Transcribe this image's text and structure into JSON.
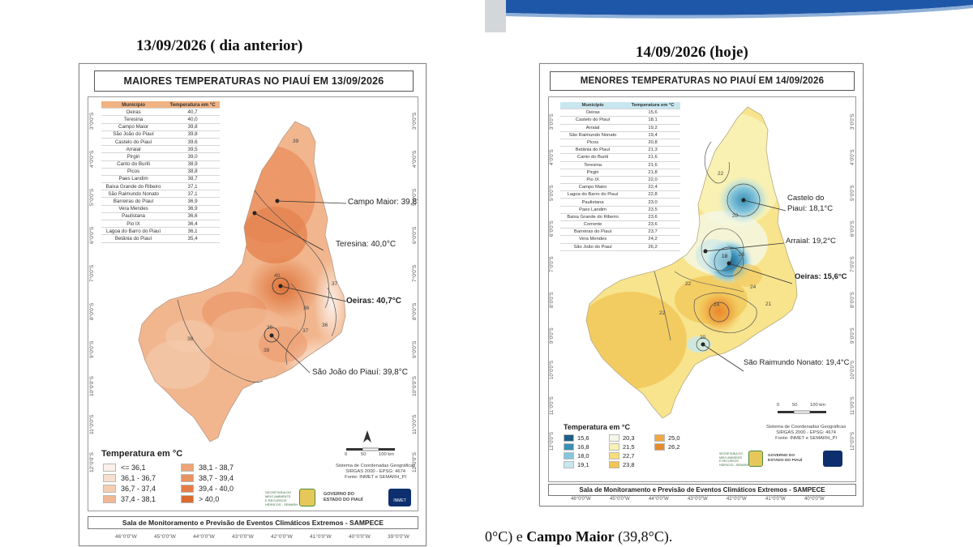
{
  "left": {
    "date_header": "13/09/2026 ( dia anterior)",
    "title": "MAIORES TEMPERATURAS NO PIAUÍ EM 13/09/2026",
    "table_headers": [
      "Município",
      "Temperatura em °C"
    ],
    "table_rows": [
      [
        "Oeiras",
        "40,7"
      ],
      [
        "Teresina",
        "40,0"
      ],
      [
        "Campo Maior",
        "39,8"
      ],
      [
        "São João do Piauí",
        "39,8"
      ],
      [
        "Castelo do Piauí",
        "39,6"
      ],
      [
        "Arraial",
        "39,5"
      ],
      [
        "Pirgiri",
        "39,0"
      ],
      [
        "Canto do Buriti",
        "38,9"
      ],
      [
        "Picos",
        "38,8"
      ],
      [
        "Paes Landim",
        "38,7"
      ],
      [
        "Baixa Grande do Ribeiro",
        "37,1"
      ],
      [
        "São Raimundo Nonato",
        "37,1"
      ],
      [
        "Barreiras do Piauí",
        "36,9"
      ],
      [
        "Vera Mendes",
        "36,9"
      ],
      [
        "Paulistana",
        "36,6"
      ],
      [
        "Pio IX",
        "36,4"
      ],
      [
        "Lagoa do Barro do Piauí",
        "36,1"
      ],
      [
        "Betânia do Piauí",
        "35,4"
      ]
    ],
    "callouts": [
      "Campo Maior: 39,8°C",
      "Teresina: 40,0°C",
      "Oeiras: 40,7°C",
      "São João do Piauí: 39,8°C"
    ],
    "contour_labels": [
      "39",
      "40",
      "37",
      "36",
      "39",
      "38",
      "37",
      "36",
      "38"
    ],
    "lat_labels": [
      "3°0'0\"S",
      "4°0'0\"S",
      "5°0'0\"S",
      "6°0'0\"S",
      "7°0'0\"S",
      "8°0'0\"S",
      "9°0'0\"S",
      "10°0'0\"S",
      "11°0'0\"S",
      "12°0'0\"S"
    ],
    "lon_labels": [
      "46°0'0\"W",
      "45°0'0\"W",
      "44°0'0\"W",
      "43°0'0\"W",
      "42°0'0\"W",
      "41°0'0\"W",
      "40°0'0\"W",
      "39°0'0\"W"
    ],
    "legend_title": "Temperatura em °C",
    "legend": [
      {
        "label": "<= 36,1",
        "color": "#fbf1ea"
      },
      {
        "label": "36,1 - 36,7",
        "color": "#f7e0cf"
      },
      {
        "label": "36,7 - 37,4",
        "color": "#f4cdb1"
      },
      {
        "label": "37,4 - 38,1",
        "color": "#f1b893"
      },
      {
        "label": "38,1 - 38,7",
        "color": "#eda477"
      },
      {
        "label": "38,7 - 39,4",
        "color": "#ea9160"
      },
      {
        "label": "39,4 - 40,0",
        "color": "#e57c47"
      },
      {
        "label": "> 40,0",
        "color": "#db6a2e"
      }
    ],
    "scale_labels": [
      "0",
      "50",
      "100 km"
    ],
    "crs_text": [
      "Sistema de Coordenadas Geográficas",
      "SIRGAS 2000 - EPSG: 4674",
      "Fonte: INMET e SEMARH_PI"
    ],
    "gov_text": [
      "GOVERNO DO",
      "ESTADO DO PIAUÍ"
    ],
    "agency_text": [
      "SECRETARIA DO",
      "MEIO AMBIENTE",
      "E RECURSOS",
      "HÍDRICOS - SEMARH"
    ],
    "inmet_text": "INMET",
    "footer": "Sala de Monitoramento e Previsão de Eventos Climáticos Extremos - SAMPECE"
  },
  "right": {
    "date_header": "14/09/2026 (hoje)",
    "title": "MENORES TEMPERATURAS NO PIAUÍ EM 14/09/2026",
    "table_headers": [
      "Município",
      "Temperatura em °C"
    ],
    "table_rows": [
      [
        "Oeiras",
        "15,6"
      ],
      [
        "Castelo do Piauí",
        "18,1"
      ],
      [
        "Arraial",
        "19,2"
      ],
      [
        "São Raimundo Nonato",
        "19,4"
      ],
      [
        "Picos",
        "20,8"
      ],
      [
        "Betânia do Piauí",
        "21,3"
      ],
      [
        "Canto do Buriti",
        "21,6"
      ],
      [
        "Teresina",
        "21,6"
      ],
      [
        "Pirgiri",
        "21,8"
      ],
      [
        "Pio IX",
        "22,0"
      ],
      [
        "Campo Maior",
        "22,4"
      ],
      [
        "Lagoa do Barro do Piauí",
        "22,8"
      ],
      [
        "Paulistana",
        "23,0"
      ],
      [
        "Paes Landim",
        "23,5"
      ],
      [
        "Baixa Grande do Ribeiro",
        "23,6"
      ],
      [
        "Corrente",
        "23,6"
      ],
      [
        "Barreiras do Piauí",
        "23,7"
      ],
      [
        "Vera Mendes",
        "24,2"
      ],
      [
        "São João do Piauí",
        "26,2"
      ]
    ],
    "callouts": [
      "Castelo do\nPiauí: 18,1°C",
      "Arraial: 19,2°C",
      "Oeiras: 15,6°C",
      "São Raimundo Nonato: 19,4°C"
    ],
    "contour_labels": [
      "22",
      "20",
      "18",
      "20",
      "24",
      "22",
      "24",
      "22",
      "20",
      "21"
    ],
    "lat_labels": [
      "3°0'0\"S",
      "4°0'0\"S",
      "5°0'0\"S",
      "6°0'0\"S",
      "7°0'0\"S",
      "8°0'0\"S",
      "9°0'0\"S",
      "10°0'0\"S",
      "11°0'0\"S",
      "12°0'0\"S"
    ],
    "lon_labels": [
      "46°0'0\"W",
      "45°0'0\"W",
      "44°0'0\"W",
      "43°0'0\"W",
      "42°0'0\"W",
      "41°0'0\"W",
      "40°0'0\"W"
    ],
    "legend_title": "Temperatura em °C",
    "legend": [
      {
        "label": "15,6",
        "color": "#1f5f86"
      },
      {
        "label": "20,3",
        "color": "#f4f7e9"
      },
      {
        "label": "25,0",
        "color": "#f0a845"
      },
      {
        "label": "16,8",
        "color": "#3b8fb5"
      },
      {
        "label": "21,5",
        "color": "#f8f2b6"
      },
      {
        "label": "26,2",
        "color": "#e8892c"
      },
      {
        "label": "18,0",
        "color": "#84c6dc"
      },
      {
        "label": "22,7",
        "color": "#f6de7a"
      },
      {
        "label": "19,1",
        "color": "#c6e8ef"
      },
      {
        "label": "23,8",
        "color": "#f1c453"
      }
    ],
    "scale_labels": [
      "0",
      "50",
      "100 km"
    ],
    "crs_text": [
      "Sistema de Coordenadas Geográficas",
      "SIRGAS 2000 - EPSG: 4674",
      "Fonte: INMET e SEMARH_PI"
    ],
    "gov_text": [
      "GOVERNO DO",
      "ESTADO DO PIAUÍ"
    ],
    "agency_text": [
      "SECRETARIA DO",
      "MEIO AMBIENTE",
      "E RECURSOS",
      "HÍDRICOS - SEMARH"
    ],
    "footer": "Sala de Monitoramento e Previsão de Eventos Climáticos Extremos - SAMPECE"
  },
  "bottom_text": {
    "part1": "0°C) e ",
    "bold": "Campo Maior",
    "part2": " (39,8°C)."
  },
  "colors": {
    "left_base": "#f2b68e",
    "left_hot": "#e57c47",
    "left_light": "#f8dcc7",
    "right_base": "#f7e48d",
    "right_warm": "#f0b54a",
    "right_cold": "#3b8fb5",
    "banner_blue": "#1f57a8"
  }
}
